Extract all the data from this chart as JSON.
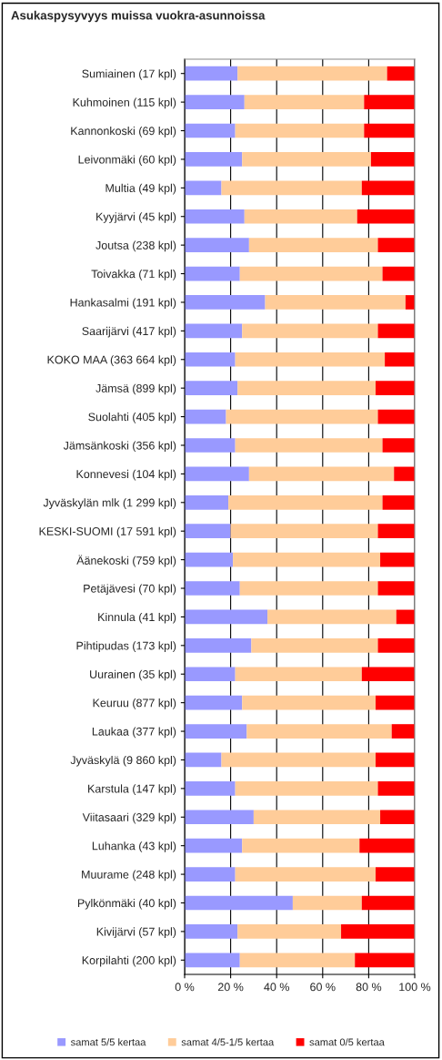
{
  "chart_data": {
    "type": "bar",
    "orientation": "horizontal",
    "stacked": true,
    "title": "Asukaspysyvyys muissa vuokra-asunnoissa",
    "categories": [
      "Sumiainen (17 kpl)",
      "Kuhmoinen (115 kpl)",
      "Kannonkoski (69 kpl)",
      "Leivonmäki (60 kpl)",
      "Multia (49 kpl)",
      "Kyyjärvi (45 kpl)",
      "Joutsa (238 kpl)",
      "Toivakka (71 kpl)",
      "Hankasalmi (191 kpl)",
      "Saarijärvi (417 kpl)",
      "KOKO MAA (363 664 kpl)",
      "Jämsä (899 kpl)",
      "Suolahti (405 kpl)",
      "Jämsänkoski (356 kpl)",
      "Konnevesi (104 kpl)",
      "Jyväskylän mlk (1 299 kpl)",
      "KESKI-SUOMI (17 591 kpl)",
      "Äänekoski (759 kpl)",
      "Petäjävesi (70 kpl)",
      "Kinnula (41 kpl)",
      "Pihtipudas (173 kpl)",
      "Uurainen (35 kpl)",
      "Keuruu (877 kpl)",
      "Laukaa (377 kpl)",
      "Jyväskylä (9 860 kpl)",
      "Karstula (147 kpl)",
      "Viitasaari (329 kpl)",
      "Luhanka (43 kpl)",
      "Muurame (248 kpl)",
      "Pylkönmäki (40 kpl)",
      "Kivijärvi (57 kpl)",
      "Korpilahti (200 kpl)"
    ],
    "series": [
      {
        "name": "samat 5/5 kertaa",
        "color": "#9999ff",
        "values": [
          23,
          26,
          22,
          25,
          16,
          26,
          28,
          24,
          35,
          25,
          22,
          23,
          18,
          22,
          28,
          19,
          20,
          21,
          24,
          36,
          29,
          22,
          25,
          27,
          16,
          22,
          30,
          25,
          22,
          47,
          23,
          24
        ]
      },
      {
        "name": "samat 4/5-1/5 kertaa",
        "color": "#ffcc99",
        "values": [
          65,
          52,
          56,
          56,
          61,
          49,
          56,
          62,
          61,
          59,
          65,
          60,
          66,
          64,
          63,
          67,
          64,
          64,
          60,
          56,
          55,
          55,
          58,
          63,
          67,
          62,
          55,
          51,
          61,
          30,
          45,
          50
        ]
      },
      {
        "name": "samat 0/5 kertaa",
        "color": "#ff0000",
        "values": [
          12,
          22,
          22,
          19,
          23,
          25,
          16,
          14,
          4,
          16,
          13,
          17,
          16,
          14,
          9,
          14,
          16,
          15,
          16,
          8,
          16,
          23,
          17,
          10,
          17,
          16,
          15,
          24,
          17,
          23,
          32,
          26
        ]
      }
    ],
    "xlim": [
      0,
      100
    ],
    "xticks": [
      {
        "value": 0,
        "label": "0 %"
      },
      {
        "value": 20,
        "label": "20 %"
      },
      {
        "value": 40,
        "label": "40 %"
      },
      {
        "value": 60,
        "label": "60 %"
      },
      {
        "value": 80,
        "label": "80 %"
      },
      {
        "value": 100,
        "label": "100 %"
      }
    ],
    "grid": "x",
    "legend": "bottom"
  }
}
